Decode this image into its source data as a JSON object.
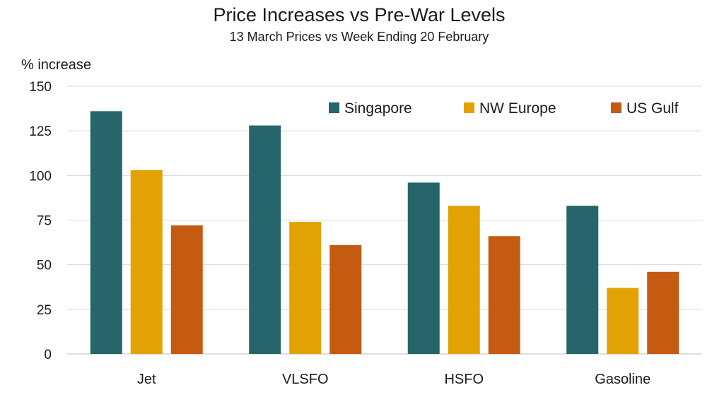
{
  "chart_data": {
    "type": "bar",
    "title": "Price Increases vs Pre-War Levels",
    "subtitle": "13 March Prices vs Week Ending 20 February",
    "ylabel": "% increase",
    "xlabel": "",
    "ylim": [
      0,
      150
    ],
    "yticks": [
      0,
      25,
      50,
      75,
      100,
      125,
      150
    ],
    "grid": true,
    "legend_position": "top-right",
    "categories": [
      "Jet",
      "VLSFO",
      "HSFO",
      "Gasoline"
    ],
    "series": [
      {
        "name": "Singapore",
        "color": "#26666A",
        "values": [
          136,
          128,
          96,
          83
        ]
      },
      {
        "name": "NW Europe",
        "color": "#E3A204",
        "values": [
          103,
          74,
          83,
          37
        ]
      },
      {
        "name": "US Gulf",
        "color": "#C55A11",
        "values": [
          72,
          61,
          66,
          46
        ]
      }
    ]
  }
}
